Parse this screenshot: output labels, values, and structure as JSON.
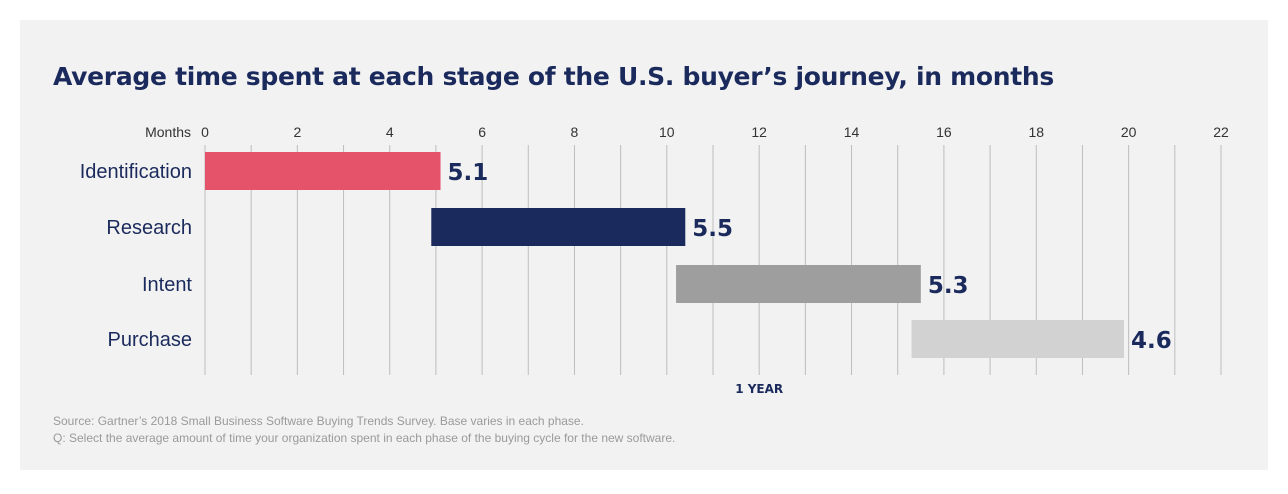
{
  "chart_data": {
    "type": "bar",
    "orientation": "horizontal",
    "layout": "floating-gantt",
    "title": "Average time spent at each stage of the U.S. buyer’s journey, in months",
    "axis_label": "Months",
    "xlim": [
      0,
      22
    ],
    "ticks": [
      0,
      2,
      4,
      6,
      8,
      10,
      12,
      14,
      16,
      18,
      20,
      22
    ],
    "grid": "vertical",
    "marker": {
      "label": "1 YEAR",
      "value": 12
    },
    "categories": [
      "Identification",
      "Research",
      "Intent",
      "Purchase"
    ],
    "values": [
      5.1,
      5.5,
      5.3,
      4.6
    ],
    "starts": [
      0,
      4.9,
      10.2,
      15.3
    ],
    "value_labels": [
      "5.1",
      "5.5",
      "5.3",
      "4.6"
    ],
    "colors": [
      "#e5536a",
      "#1b2a5c",
      "#9e9e9e",
      "#d2d2d2"
    ]
  },
  "footnotes": {
    "source": "Source: Gartner’s 2018 Small Business Software Buying Trends Survey. Base varies in each phase.",
    "question": "Q: Select the average amount of time your organization spent in each phase of the buying cycle for the new software."
  }
}
